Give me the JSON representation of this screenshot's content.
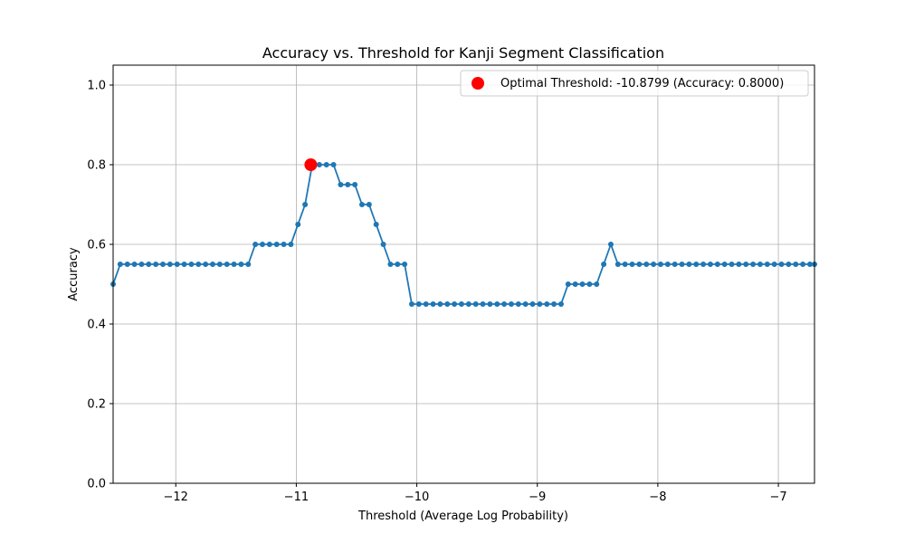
{
  "chart_data": {
    "type": "line",
    "title": "Accuracy vs. Threshold for Kanji Segment Classification",
    "xlabel": "Threshold (Average Log Probability)",
    "ylabel": "Accuracy",
    "xlim": [
      -12.52,
      -6.7
    ],
    "ylim": [
      0.0,
      1.05
    ],
    "x_ticks": [
      -12,
      -11,
      -10,
      -9,
      -8,
      -7
    ],
    "x_tick_labels": [
      "−12",
      "−11",
      "−10",
      "−9",
      "−8",
      "−7"
    ],
    "y_ticks": [
      0.0,
      0.2,
      0.4,
      0.6,
      0.8,
      1.0
    ],
    "y_tick_labels": [
      "0.0",
      "0.2",
      "0.4",
      "0.6",
      "0.8",
      "1.0"
    ],
    "grid": true,
    "series": [
      {
        "name": "Accuracy",
        "color": "#1f77b4",
        "x": [
          -12.52,
          -12.461,
          -12.402,
          -12.343,
          -12.284,
          -12.225,
          -12.166,
          -12.107,
          -12.048,
          -11.989,
          -11.93,
          -11.871,
          -11.812,
          -11.753,
          -11.694,
          -11.635,
          -11.576,
          -11.517,
          -11.458,
          -11.399,
          -11.34,
          -11.281,
          -11.222,
          -11.163,
          -11.104,
          -11.045,
          -10.986,
          -10.927,
          -10.868,
          -10.809,
          -10.75,
          -10.691,
          -10.632,
          -10.573,
          -10.514,
          -10.455,
          -10.396,
          -10.337,
          -10.278,
          -10.219,
          -10.16,
          -10.101,
          -10.042,
          -9.983,
          -9.924,
          -9.865,
          -9.806,
          -9.747,
          -9.688,
          -9.629,
          -9.57,
          -9.511,
          -9.452,
          -9.393,
          -9.334,
          -9.275,
          -9.216,
          -9.157,
          -9.098,
          -9.039,
          -8.98,
          -8.921,
          -8.862,
          -8.803,
          -8.744,
          -8.685,
          -8.626,
          -8.567,
          -8.508,
          -8.449,
          -8.39,
          -8.331,
          -8.272,
          -8.213,
          -8.154,
          -8.095,
          -8.036,
          -7.977,
          -7.918,
          -7.859,
          -7.8,
          -7.741,
          -7.682,
          -7.623,
          -7.564,
          -7.505,
          -7.446,
          -7.387,
          -7.328,
          -7.269,
          -7.21,
          -7.151,
          -7.092,
          -7.033,
          -6.974,
          -6.915,
          -6.856,
          -6.797,
          -6.738,
          -6.7
        ],
        "y": [
          0.5,
          0.55,
          0.55,
          0.55,
          0.55,
          0.55,
          0.55,
          0.55,
          0.55,
          0.55,
          0.55,
          0.55,
          0.55,
          0.55,
          0.55,
          0.55,
          0.55,
          0.55,
          0.55,
          0.55,
          0.6,
          0.6,
          0.6,
          0.6,
          0.6,
          0.6,
          0.65,
          0.7,
          0.8,
          0.8,
          0.8,
          0.8,
          0.75,
          0.75,
          0.75,
          0.7,
          0.7,
          0.65,
          0.6,
          0.55,
          0.55,
          0.55,
          0.45,
          0.45,
          0.45,
          0.45,
          0.45,
          0.45,
          0.45,
          0.45,
          0.45,
          0.45,
          0.45,
          0.45,
          0.45,
          0.45,
          0.45,
          0.45,
          0.45,
          0.45,
          0.45,
          0.45,
          0.45,
          0.45,
          0.5,
          0.5,
          0.5,
          0.5,
          0.5,
          0.55,
          0.6,
          0.55,
          0.55,
          0.55,
          0.55,
          0.55,
          0.55,
          0.55,
          0.55,
          0.55,
          0.55,
          0.55,
          0.55,
          0.55,
          0.55,
          0.55,
          0.55,
          0.55,
          0.55,
          0.55,
          0.55,
          0.55,
          0.55,
          0.55,
          0.55,
          0.55,
          0.55,
          0.55,
          0.55,
          0.55
        ]
      }
    ],
    "highlight": {
      "label": "Optimal Threshold: -10.8799 (Accuracy: 0.8000)",
      "x": -10.8799,
      "y": 0.8,
      "color": "#ff0000"
    },
    "legend_position": "top-right"
  }
}
